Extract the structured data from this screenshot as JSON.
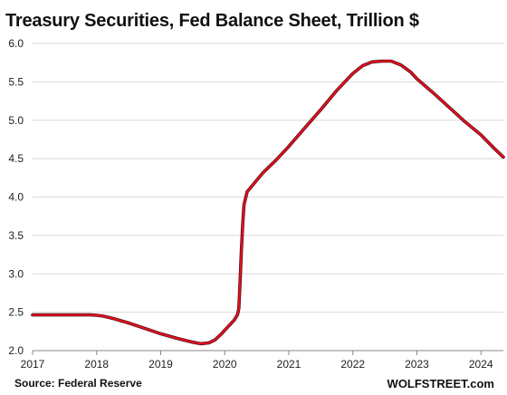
{
  "chart_data": {
    "type": "line",
    "title": "Treasury Securities, Fed Balance Sheet, Trillion $",
    "source": "Source: Federal Reserve",
    "brand": "WOLFSTREET.com",
    "xlabel": "",
    "ylabel": "",
    "xlim": [
      2017.0,
      2024.35
    ],
    "ylim": [
      2.0,
      6.0
    ],
    "yticks": [
      "2.0",
      "2.5",
      "3.0",
      "3.5",
      "4.0",
      "4.5",
      "5.0",
      "5.5",
      "6.0"
    ],
    "xticks": [
      "2017",
      "2018",
      "2019",
      "2020",
      "2021",
      "2022",
      "2023",
      "2024"
    ],
    "grid": "horizontal",
    "legend": "none",
    "colors": {
      "line": "#e8101a",
      "line_shadow": "#5a1020",
      "grid": "#d9d9d9",
      "axis": "#888888"
    },
    "series": [
      {
        "x": [
          2017.0,
          2017.5,
          2017.75,
          2017.9,
          2018.0,
          2018.1,
          2018.25,
          2018.5,
          2018.75,
          2019.0,
          2019.25,
          2019.5,
          2019.62,
          2019.75,
          2019.85,
          2019.95,
          2020.05,
          2020.15,
          2020.2,
          2020.22,
          2020.24,
          2020.26,
          2020.28,
          2020.3,
          2020.35,
          2020.45,
          2020.6,
          2020.8,
          2021.0,
          2021.25,
          2021.5,
          2021.75,
          2022.0,
          2022.15,
          2022.3,
          2022.45,
          2022.6,
          2022.75,
          2022.9,
          2023.0,
          2023.25,
          2023.5,
          2023.75,
          2024.0,
          2024.2,
          2024.35
        ],
        "values": [
          2.465,
          2.465,
          2.465,
          2.465,
          2.46,
          2.45,
          2.42,
          2.36,
          2.29,
          2.22,
          2.16,
          2.11,
          2.09,
          2.1,
          2.14,
          2.22,
          2.31,
          2.4,
          2.47,
          2.55,
          2.9,
          3.3,
          3.65,
          3.9,
          4.07,
          4.17,
          4.32,
          4.48,
          4.66,
          4.9,
          5.14,
          5.39,
          5.61,
          5.71,
          5.76,
          5.77,
          5.77,
          5.72,
          5.63,
          5.54,
          5.36,
          5.17,
          4.98,
          4.81,
          4.64,
          4.52
        ]
      }
    ]
  }
}
